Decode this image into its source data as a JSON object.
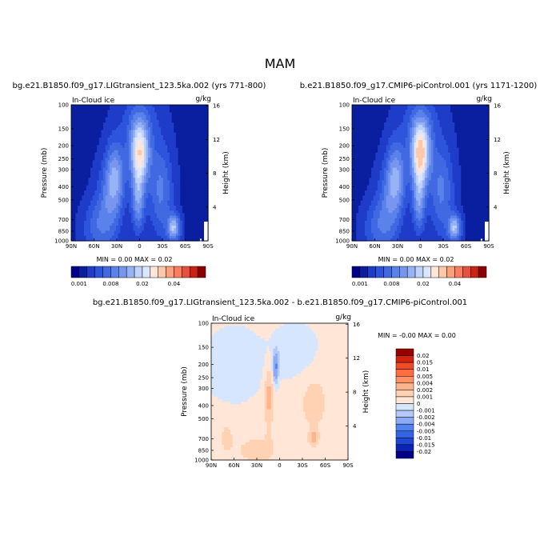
{
  "page_title": "MAM",
  "colors": {
    "contour_fill": [
      "#00008C",
      "#0A1EA0",
      "#1E3CC8",
      "#2D55DC",
      "#4169E1",
      "#5A82EB",
      "#7896F0",
      "#96B4F5",
      "#BED2FA",
      "#DCE6FF",
      "#FFE6D7",
      "#FFC8AA",
      "#FFA07D",
      "#FA7D5F",
      "#E6503C",
      "#C82314",
      "#8C0000"
    ],
    "diff_colors": [
      "#00008C",
      "#0A23B4",
      "#1E46D2",
      "#3264E6",
      "#5082F0",
      "#6E96F0",
      "#8CAAF5",
      "#B4C8FA",
      "#D7E6FF",
      "#FFE6D7",
      "#FFD2B4",
      "#FFB48C",
      "#FF9164",
      "#FF6E41",
      "#F04B28",
      "#D2230F",
      "#960000",
      "#7A0000"
    ]
  },
  "chart_data": [
    {
      "type": "heatmap",
      "title": "bg.e21.B1850.f09_g17.LIGtransient_123.5ka.002 (yrs 771-800)",
      "panel_label": "In-Cloud ice",
      "units": "g/kg",
      "ylabel": "Pressure (mb)",
      "ylabel_right": "Height (km)",
      "x_ticks": [
        "90N",
        "60N",
        "30N",
        "0",
        "30S",
        "60S",
        "90S"
      ],
      "x_values": [
        90,
        60,
        30,
        0,
        -30,
        -60,
        -90
      ],
      "y_ticks": [
        "100",
        "150",
        "200",
        "250",
        "300",
        "400",
        "500",
        "700",
        "850",
        "1000"
      ],
      "y_values": [
        100,
        150,
        200,
        250,
        300,
        400,
        500,
        700,
        850,
        1000
      ],
      "y_scale": "log",
      "right_ticks": [
        "16",
        "12",
        "8",
        "4"
      ],
      "right_values": [
        16,
        12,
        8,
        4
      ],
      "stats_text": "MIN =    0.00   MAX =    0.02",
      "colorbar": {
        "levels": [
          0.001,
          0.002,
          0.004,
          0.006,
          0.008,
          0.01,
          0.012,
          0.014,
          0.016,
          0.018,
          0.02,
          0.025,
          0.03,
          0.035,
          0.04,
          0.045
        ],
        "tick_labels": [
          "0.001",
          "0.008",
          "0.02",
          "0.04"
        ],
        "orientation": "horizontal"
      },
      "features": [
        {
          "lat": 0,
          "p": 220,
          "value": 0.018,
          "desc": "tropical upper-tropospheric maximum"
        },
        {
          "lat": 30,
          "p": 320,
          "value": 0.01,
          "desc": "northern subtropical maximum"
        },
        {
          "lat": -45,
          "p": 800,
          "value": 0.012,
          "desc": "southern mid-latitude low-level maximum"
        }
      ]
    },
    {
      "type": "heatmap",
      "title": "b.e21.B1850.f09_g17.CMIP6-piControl.001 (yrs 1171-1200)",
      "panel_label": "In-Cloud ice",
      "units": "g/kg",
      "ylabel": "Pressure (mb)",
      "ylabel_right": "Height (km)",
      "x_ticks": [
        "90N",
        "60N",
        "30N",
        "0",
        "30S",
        "60S",
        "90S"
      ],
      "x_values": [
        90,
        60,
        30,
        0,
        -30,
        -60,
        -90
      ],
      "y_ticks": [
        "100",
        "150",
        "200",
        "250",
        "300",
        "400",
        "500",
        "700",
        "850",
        "1000"
      ],
      "y_values": [
        100,
        150,
        200,
        250,
        300,
        400,
        500,
        700,
        850,
        1000
      ],
      "y_scale": "log",
      "right_ticks": [
        "16",
        "12",
        "8",
        "4"
      ],
      "right_values": [
        16,
        12,
        8,
        4
      ],
      "stats_text": "MIN =    0.00   MAX =    0.02",
      "colorbar": {
        "levels": [
          0.001,
          0.002,
          0.004,
          0.006,
          0.008,
          0.01,
          0.012,
          0.014,
          0.016,
          0.018,
          0.02,
          0.025,
          0.03,
          0.035,
          0.04,
          0.045
        ],
        "tick_labels": [
          "0.001",
          "0.008",
          "0.02",
          "0.04"
        ],
        "orientation": "horizontal"
      },
      "features": [
        {
          "lat": 0,
          "p": 220,
          "value": 0.02,
          "desc": "tropical upper-tropospheric maximum"
        },
        {
          "lat": 30,
          "p": 320,
          "value": 0.01,
          "desc": "northern subtropical maximum"
        },
        {
          "lat": -45,
          "p": 800,
          "value": 0.012,
          "desc": "southern mid-latitude low-level maximum"
        }
      ]
    },
    {
      "type": "heatmap",
      "title": "bg.e21.B1850.f09_g17.LIGtransient_123.5ka.002 - b.e21.B1850.f09_g17.CMIP6-piControl.001",
      "panel_label": "In-Cloud ice",
      "units": "g/kg",
      "ylabel": "Pressure (mb)",
      "ylabel_right": "Height (km)",
      "x_ticks": [
        "90N",
        "60N",
        "30N",
        "0",
        "30S",
        "60S",
        "90S"
      ],
      "x_values": [
        90,
        60,
        30,
        0,
        -30,
        -60,
        -90
      ],
      "y_ticks": [
        "100",
        "150",
        "200",
        "250",
        "300",
        "400",
        "500",
        "700",
        "850",
        "1000"
      ],
      "y_values": [
        100,
        150,
        200,
        250,
        300,
        400,
        500,
        700,
        850,
        1000
      ],
      "y_scale": "log",
      "right_ticks": [
        "16",
        "12",
        "8",
        "4"
      ],
      "right_values": [
        16,
        12,
        8,
        4
      ],
      "stats_text": "MIN =   -0.00   MAX =    0.00",
      "colorbar": {
        "levels": [
          0.02,
          0.015,
          0.01,
          0.005,
          0.004,
          0.002,
          0.001,
          0,
          -0.001,
          -0.002,
          -0.004,
          -0.005,
          -0.01,
          -0.015,
          -0.02
        ],
        "tick_labels": [
          "0.02",
          "0.015",
          "0.01",
          "0.005",
          "0.004",
          "0.002",
          "0.001",
          "0",
          "-0.001",
          "-0.002",
          "-0.004",
          "-0.005",
          "-0.01",
          "-0.015",
          "-0.02"
        ],
        "orientation": "vertical"
      },
      "features": [
        {
          "lat": 15,
          "p": 330,
          "value": 0.002,
          "desc": "positive anomaly column north of equator"
        },
        {
          "lat": 5,
          "p": 210,
          "value": -0.003,
          "desc": "negative anomaly near tropical tropopause"
        },
        {
          "lat": -45,
          "p": 680,
          "value": 0.002,
          "desc": "positive anomaly southern low levels"
        }
      ]
    }
  ]
}
